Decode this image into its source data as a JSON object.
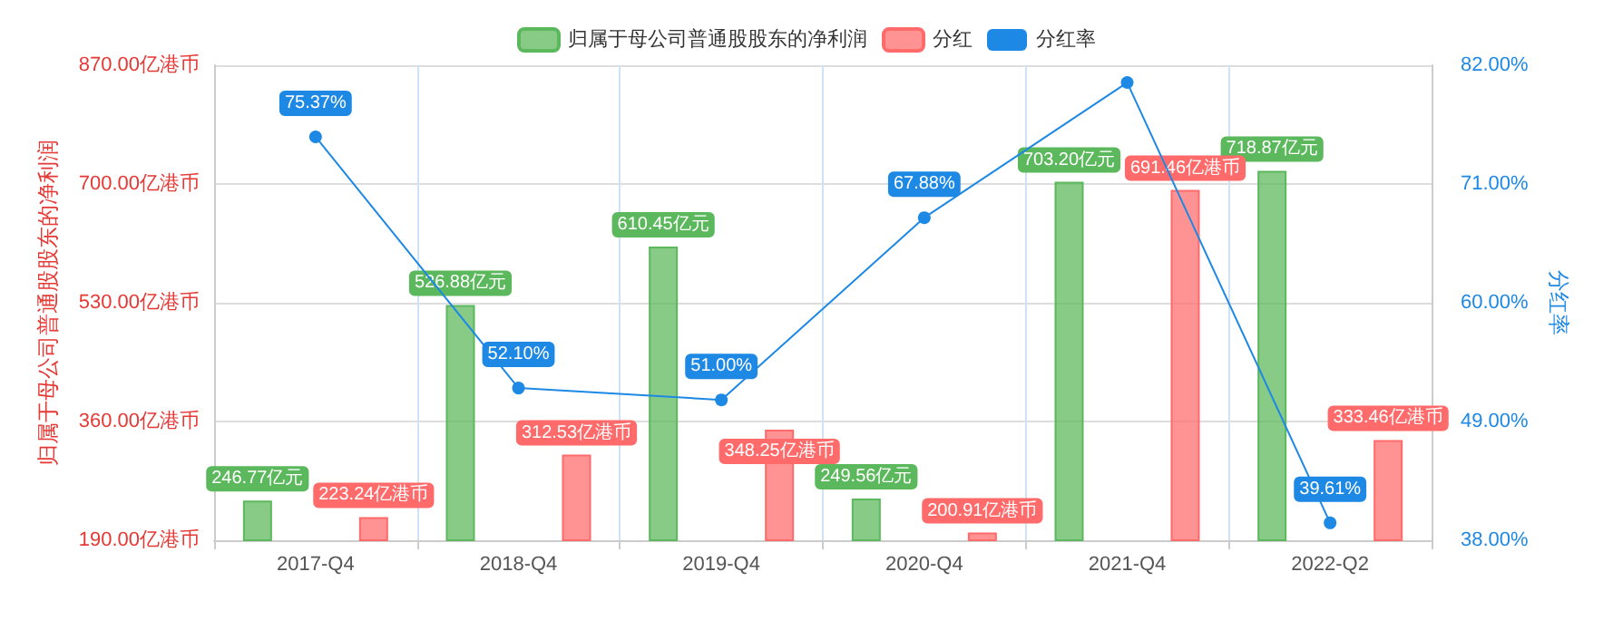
{
  "chart_data": {
    "type": "bar",
    "categories": [
      "2017-Q4",
      "2018-Q4",
      "2019-Q4",
      "2020-Q4",
      "2021-Q4",
      "2022-Q2"
    ],
    "ylabel": "归属于母公司普通股股东的净利润",
    "y2label": "分红率",
    "ylim": [
      190,
      870
    ],
    "yticks": [
      {
        "value": 190,
        "label": "190.00亿港币"
      },
      {
        "value": 360,
        "label": "360.00亿港币"
      },
      {
        "value": 530,
        "label": "530.00亿港币"
      },
      {
        "value": 700,
        "label": "700.00亿港币"
      },
      {
        "value": 870,
        "label": "870.00亿港币"
      }
    ],
    "y2lim": [
      38,
      82
    ],
    "y2ticks": [
      {
        "value": 38,
        "label": "38.00%"
      },
      {
        "value": 49,
        "label": "49.00%"
      },
      {
        "value": 60,
        "label": "60.00%"
      },
      {
        "value": 71,
        "label": "71.00%"
      },
      {
        "value": 82,
        "label": "82.00%"
      }
    ],
    "series": [
      {
        "name": "归属于母公司普通股股东的净利润",
        "color": "#5cb85c",
        "values": [
          246.77,
          526.88,
          610.45,
          249.56,
          703.2,
          718.87
        ],
        "value_labels": [
          "246.77亿元",
          "526.88亿元",
          "610.45亿元",
          "249.56亿元",
          "703.20亿元",
          "718.87亿元"
        ]
      },
      {
        "name": "分红",
        "color": "#ff6b6b",
        "values": [
          223.24,
          312.53,
          348.25,
          200.91,
          691.46,
          333.46
        ],
        "value_labels": [
          "223.24亿港币",
          "312.53亿港币",
          "348.25亿港币",
          "200.91亿港币",
          "691.46亿港币",
          "333.46亿港币"
        ]
      },
      {
        "name": "分红率",
        "type": "line",
        "axis": "y2",
        "color": "#1e88e5",
        "values": [
          75.37,
          52.1,
          51.0,
          67.88,
          80.4,
          39.61
        ],
        "value_labels": [
          "75.37%",
          "52.10%",
          "51.00%",
          "67.88%",
          null,
          "39.61%"
        ]
      }
    ],
    "grid": true,
    "legend": "top",
    "marker": "circle"
  }
}
